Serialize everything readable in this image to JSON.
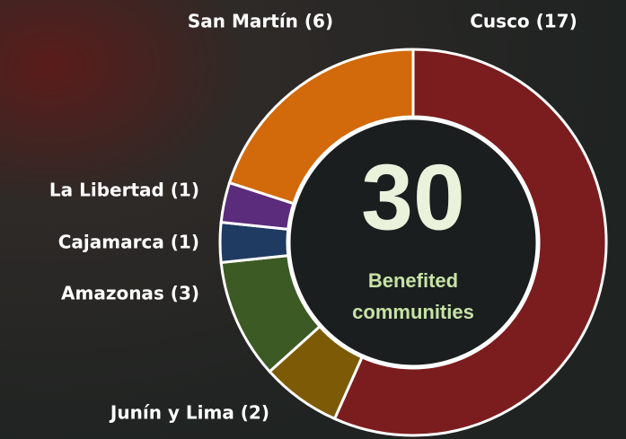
{
  "chart_data": {
    "type": "donut",
    "categories": [
      "Cusco (17)",
      "Junín y Lima (2)",
      "Amazonas (3)",
      "Cajamarca (1)",
      "La Libertad (1)",
      "San Martín (6)"
    ],
    "values": [
      17,
      2,
      3,
      1,
      1,
      6
    ],
    "colors": [
      "#7b1d1e",
      "#7d5a05",
      "#3c5a24",
      "#1f3b62",
      "#5b2b7c",
      "#d2690a"
    ],
    "total": 30,
    "center_text": [
      "Benefited",
      "communities"
    ]
  }
}
